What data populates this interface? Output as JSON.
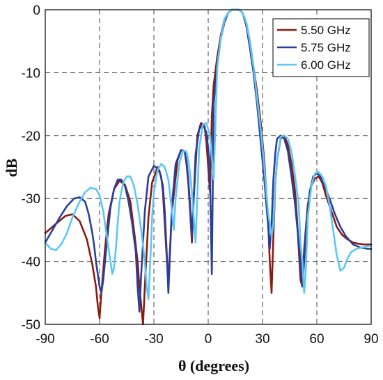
{
  "chart_data": {
    "type": "line",
    "xlabel": "θ (degrees)",
    "ylabel": "dB",
    "xlim": [
      -90,
      90
    ],
    "ylim": [
      -50,
      0
    ],
    "xticks": [
      "-90",
      "-60",
      "-30",
      "0",
      "30",
      "60",
      "90"
    ],
    "yticks": [
      "0",
      "-10",
      "-20",
      "-30",
      "-40",
      "-50"
    ],
    "grid": "dashed",
    "legend_position": "top-right",
    "series": [
      {
        "name": "5.50 GHz",
        "color": "#8b1a10",
        "x": [
          -90,
          -84,
          -79,
          -75,
          -71,
          -67,
          -64,
          -62,
          -61,
          -60,
          -59,
          -57,
          -55,
          -52,
          -49,
          -46,
          -43,
          -41,
          -39,
          -38,
          -37,
          -36,
          -35,
          -33,
          -31,
          -28,
          -26,
          -25,
          -24,
          -23,
          -22,
          -20,
          -17,
          -15,
          -13,
          -12,
          -11,
          -10,
          -9,
          -8,
          -6,
          -4,
          -2,
          -1,
          0,
          1,
          2,
          3,
          5,
          7,
          9,
          11,
          13,
          15,
          17,
          19,
          21,
          23,
          25,
          27,
          29,
          31,
          33,
          34,
          35,
          36,
          37,
          38,
          40,
          42,
          44,
          46,
          48,
          49,
          50,
          51,
          52,
          53,
          55,
          57,
          59,
          61,
          63,
          65,
          68,
          71,
          74,
          77,
          80,
          83,
          86,
          90
        ],
        "y": [
          -35.5,
          -34,
          -32.8,
          -32.5,
          -33.6,
          -36.5,
          -40.5,
          -44,
          -47,
          -49,
          -45,
          -38,
          -32.5,
          -28.5,
          -27.2,
          -27.8,
          -30.5,
          -35,
          -40,
          -44,
          -47,
          -50,
          -44,
          -33,
          -27.5,
          -25,
          -26.5,
          -29,
          -34,
          -39,
          -43,
          -32,
          -24,
          -22.3,
          -22.5,
          -24.5,
          -27.5,
          -32,
          -37,
          -30,
          -20,
          -18,
          -18.5,
          -21,
          -25,
          -29,
          -17,
          -12,
          -7.5,
          -4,
          -1.5,
          -0.5,
          0,
          0,
          0,
          -0.5,
          -2,
          -5,
          -9,
          -13,
          -18,
          -24,
          -33,
          -40,
          -45,
          -36,
          -28,
          -24,
          -20.5,
          -20,
          -21.5,
          -24.5,
          -29,
          -33,
          -38,
          -43,
          -44,
          -38,
          -31,
          -28,
          -26.8,
          -26.5,
          -27.5,
          -29.5,
          -32,
          -34.5,
          -35.8,
          -36.5,
          -37,
          -37.2,
          -37.3,
          -37.3
        ]
      },
      {
        "name": "5.75 GHz",
        "color": "#2b3f9a",
        "x": [
          -90,
          -86,
          -82,
          -78,
          -74,
          -71,
          -68,
          -66,
          -64,
          -63,
          -62,
          -61,
          -60,
          -59,
          -58,
          -56,
          -54,
          -52,
          -50,
          -48,
          -46,
          -44,
          -42,
          -40,
          -39,
          -38,
          -37,
          -35,
          -33,
          -30,
          -27,
          -25,
          -24,
          -23,
          -22,
          -21,
          -20,
          -18,
          -15,
          -13,
          -12,
          -11,
          -10,
          -9,
          -8,
          -7,
          -5,
          -3,
          -1,
          0,
          1,
          2,
          3,
          5,
          7,
          9,
          11,
          13,
          15,
          17,
          19,
          21,
          23,
          25,
          27,
          29,
          31,
          33,
          34,
          35,
          36,
          37,
          38,
          40,
          42,
          44,
          46,
          48,
          50,
          51,
          52,
          53,
          54,
          56,
          58,
          60,
          62,
          64,
          67,
          70,
          73,
          76,
          80,
          84,
          88,
          90
        ],
        "y": [
          -37,
          -35,
          -33,
          -31.2,
          -30,
          -29.8,
          -30.5,
          -32.5,
          -35.5,
          -37.5,
          -40,
          -42,
          -44,
          -45,
          -43,
          -37,
          -31.5,
          -28.5,
          -27,
          -27,
          -28,
          -30.5,
          -34,
          -38.5,
          -44,
          -48,
          -42,
          -32,
          -26.5,
          -24.8,
          -25.5,
          -28,
          -32,
          -38,
          -45,
          -38,
          -31,
          -24.5,
          -22.3,
          -22.6,
          -24,
          -27,
          -31,
          -36,
          -30,
          -23,
          -19,
          -18.2,
          -19.5,
          -22,
          -27,
          -42,
          -15,
          -9,
          -4.5,
          -2,
          -0.5,
          0,
          0,
          0,
          -0.5,
          -2.5,
          -6,
          -10,
          -15,
          -21,
          -27,
          -34,
          -38,
          -34,
          -27,
          -23,
          -20.5,
          -20,
          -20.5,
          -22.5,
          -26.5,
          -31,
          -37,
          -40,
          -44,
          -40,
          -35,
          -29,
          -26.5,
          -26,
          -26.5,
          -27.8,
          -30,
          -32.5,
          -34.5,
          -36,
          -37.3,
          -37.8,
          -38,
          -38
        ]
      },
      {
        "name": "6.00 GHz",
        "color": "#5bc8f5",
        "x": [
          -90,
          -87,
          -84,
          -81,
          -78,
          -75,
          -71,
          -68,
          -65,
          -62,
          -60,
          -58,
          -56,
          -54,
          -53,
          -52,
          -51,
          -50,
          -49,
          -47,
          -45,
          -43,
          -41,
          -39,
          -37,
          -35,
          -34,
          -33,
          -32,
          -31,
          -30,
          -28,
          -26,
          -24,
          -22,
          -21,
          -20,
          -19,
          -18,
          -16,
          -14,
          -12,
          -11,
          -10,
          -9,
          -8,
          -7,
          -5,
          -3,
          -1,
          1,
          3,
          5,
          7,
          9,
          11,
          13,
          15,
          17,
          19,
          21,
          23,
          25,
          27,
          29,
          31,
          33,
          35,
          36,
          37,
          38,
          40,
          42,
          44,
          46,
          48,
          50,
          51,
          52,
          53,
          54,
          55,
          57,
          59,
          61,
          63,
          65,
          67,
          69,
          71,
          73,
          75,
          77,
          79,
          82,
          85,
          88,
          90
        ],
        "y": [
          -37,
          -38,
          -38.2,
          -37.2,
          -35.5,
          -33,
          -30.5,
          -29,
          -28.3,
          -28.5,
          -29.5,
          -32,
          -36,
          -40,
          -42,
          -41,
          -38,
          -34,
          -30.5,
          -27.5,
          -26.5,
          -26.5,
          -28,
          -31,
          -35,
          -40,
          -44,
          -46,
          -40,
          -33,
          -29,
          -25.5,
          -24.5,
          -25,
          -27,
          -29.5,
          -32,
          -35,
          -30,
          -24.5,
          -22.5,
          -22.5,
          -24,
          -26,
          -29,
          -33,
          -37,
          -22,
          -18.3,
          -18,
          -20,
          -27,
          -9,
          -4.5,
          -1.5,
          -0.5,
          0,
          0,
          0,
          -0.5,
          -2,
          -5,
          -9,
          -14,
          -19,
          -25,
          -32,
          -36,
          -34,
          -28,
          -24,
          -20.2,
          -20,
          -20.5,
          -22.5,
          -26.5,
          -31,
          -37,
          -40,
          -45,
          -41,
          -33,
          -28,
          -26,
          -25.8,
          -26.5,
          -28,
          -31,
          -35,
          -39,
          -41.5,
          -41,
          -39.5,
          -38.5,
          -38,
          -37.8,
          -37.6,
          -37.5
        ]
      }
    ]
  }
}
